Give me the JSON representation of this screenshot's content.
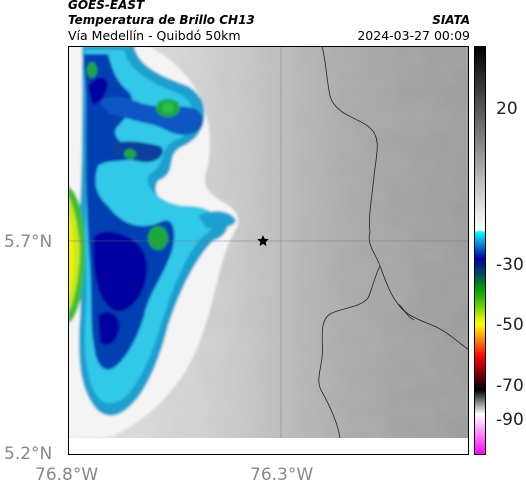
{
  "header": {
    "satellite": "GOES-EAST",
    "product": "Temperatura de Brillo CH13",
    "region": "Vía Medellín - Quibdó 50km",
    "agency": "SIATA",
    "datetime": "2024-03-27 00:09"
  },
  "map": {
    "lat_labels": [
      "5.7°N",
      "5.2°N"
    ],
    "lon_labels": [
      "76.8°W",
      "76.3°W"
    ],
    "marker": "star-icon"
  },
  "colorbar": {
    "tick_labels": [
      "20",
      "-30",
      "-50",
      "-70",
      "-90"
    ],
    "colors": [
      "#000000",
      "#ffffff",
      "#00ffff",
      "#0000aa",
      "#00aa00",
      "#ffff00",
      "#ff0000",
      "#000000",
      "#ff00ff"
    ]
  }
}
